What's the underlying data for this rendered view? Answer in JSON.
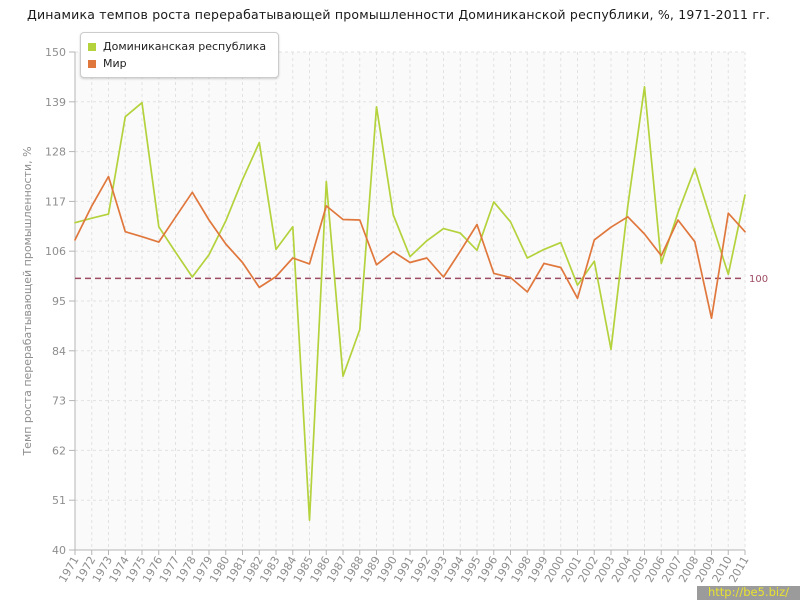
{
  "title": "Динамика темпов роста перерабатывающей промышленности Доминиканской республики, %, 1971-2011 гг.",
  "y_axis": {
    "title": "Темп роста перерабатывающей промышленности, %"
  },
  "reference_line": {
    "value": 100,
    "label": "100",
    "color": "#9d4b63"
  },
  "legend": [
    {
      "label": "Доминиканская республика",
      "color": "#b3d23c"
    },
    {
      "label": "Мир",
      "color": "#e0773c"
    }
  ],
  "watermark": {
    "text": "http://be5.biz/",
    "text_color": "#e9e32e",
    "bg_color": "#9b9b9b"
  },
  "colors": {
    "grid": "#e2e2e2",
    "axis": "#b5b5b5",
    "tick_text": "#8e8e8e",
    "plot_bg": "#fafafa"
  },
  "chart_data": {
    "type": "line",
    "title": "Динамика темпов роста перерабатывающей промышленности Доминиканской республики, %, 1971-2011 гг.",
    "xlabel": "",
    "ylabel": "Темп роста перерабатывающей промышленности, %",
    "ylim": [
      40,
      150
    ],
    "yticks": [
      40,
      51,
      62,
      73,
      84,
      95,
      106,
      117,
      128,
      139,
      150
    ],
    "grid": true,
    "legend_position": "top-left",
    "reference_line": 100,
    "x": [
      1971,
      1972,
      1973,
      1974,
      1975,
      1976,
      1977,
      1978,
      1979,
      1980,
      1981,
      1982,
      1983,
      1984,
      1985,
      1986,
      1987,
      1988,
      1989,
      1990,
      1991,
      1992,
      1993,
      1994,
      1995,
      1996,
      1997,
      1998,
      1999,
      2000,
      2001,
      2002,
      2003,
      2004,
      2005,
      2006,
      2007,
      2008,
      2009,
      2010,
      2011
    ],
    "series": [
      {
        "name": "Доминиканская республика",
        "color": "#b3d23c",
        "values": [
          112.3,
          113.3,
          114.2,
          135.7,
          138.8,
          111.4,
          105.8,
          100.3,
          105.2,
          112.7,
          121.8,
          130.0,
          106.4,
          111.4,
          46.6,
          121.4,
          78.4,
          88.7,
          137.9,
          114.0,
          104.8,
          108.3,
          111.0,
          110.0,
          106.2,
          116.9,
          112.5,
          104.5,
          106.4,
          107.9,
          98.5,
          103.8,
          84.3,
          116.0,
          142.3,
          103.3,
          114.5,
          124.3,
          112.5,
          100.9,
          118.4
        ]
      },
      {
        "name": "Мир",
        "color": "#e0773c",
        "values": [
          108.5,
          116.0,
          122.5,
          110.3,
          109.2,
          108.0,
          113.5,
          119.0,
          112.9,
          107.6,
          103.5,
          98.0,
          100.4,
          104.5,
          103.2,
          116.0,
          113.0,
          112.9,
          103.0,
          105.9,
          103.5,
          104.5,
          100.3,
          106.0,
          111.9,
          101.1,
          100.2,
          97.0,
          103.3,
          102.4,
          95.6,
          108.5,
          111.3,
          113.6,
          109.8,
          105.0,
          112.9,
          108.1,
          91.2,
          114.4,
          110.3
        ]
      }
    ]
  }
}
